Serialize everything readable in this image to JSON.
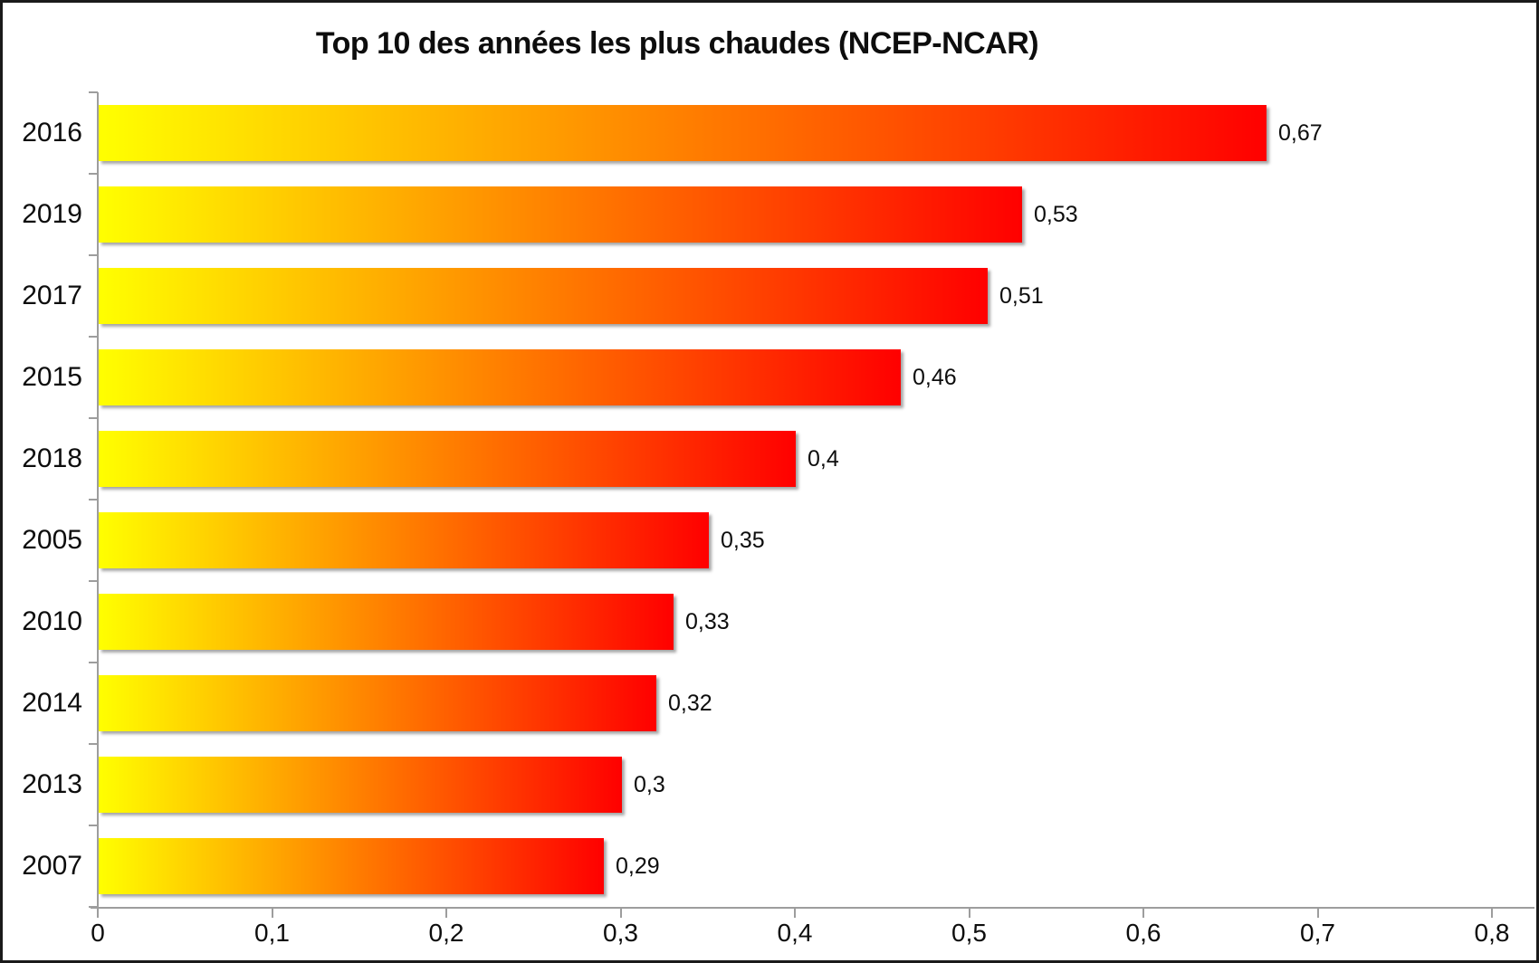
{
  "chart_data": {
    "type": "bar",
    "orientation": "horizontal",
    "title": "Top 10 des années les plus chaudes (NCEP-NCAR)",
    "categories": [
      "2016",
      "2019",
      "2017",
      "2015",
      "2018",
      "2005",
      "2010",
      "2014",
      "2013",
      "2007"
    ],
    "values": [
      0.67,
      0.53,
      0.51,
      0.46,
      0.4,
      0.35,
      0.33,
      0.32,
      0.3,
      0.29
    ],
    "value_labels": [
      "0,67",
      "0,53",
      "0,51",
      "0,46",
      "0,4",
      "0,35",
      "0,33",
      "0,32",
      "0,3",
      "0,29"
    ],
    "xlabel": "",
    "ylabel": "",
    "xlim": [
      0,
      0.8
    ],
    "x_tick_values": [
      0,
      0.1,
      0.2,
      0.3,
      0.4,
      0.5,
      0.6,
      0.7,
      0.8
    ],
    "x_tick_labels": [
      "0",
      "0,1",
      "0,2",
      "0,3",
      "0,4",
      "0,5",
      "0,6",
      "0,7",
      "0,8"
    ],
    "grid": false,
    "legend": false,
    "colors": {
      "bar_gradient_start": "#ffff00",
      "bar_gradient_end": "#ff0000",
      "axis": "#9d9d9d",
      "text": "#0d0d0d",
      "background": "#ffffff",
      "border": "#1a1a1a"
    }
  }
}
